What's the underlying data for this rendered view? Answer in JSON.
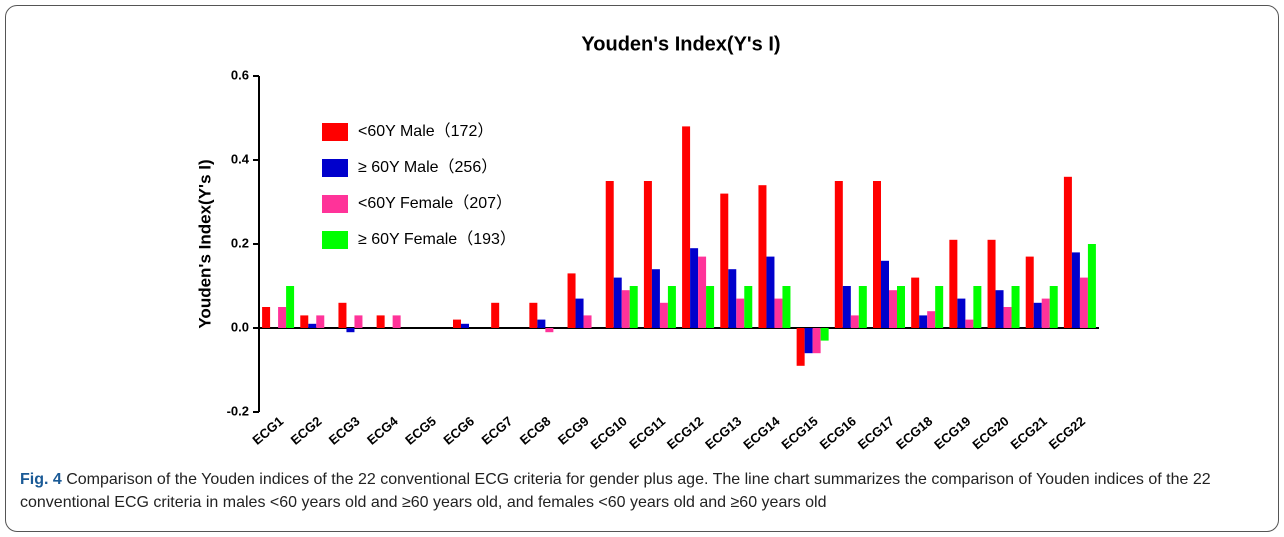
{
  "chart_data": {
    "type": "bar",
    "title": "Youden's Index(Y's I)",
    "y_label": "Youden's Index(Y's I)",
    "categories": [
      "ECG1",
      "ECG2",
      "ECG3",
      "ECG4",
      "ECG5",
      "ECG6",
      "ECG7",
      "ECG8",
      "ECG9",
      "ECG10",
      "ECG11",
      "ECG12",
      "ECG13",
      "ECG14",
      "ECG15",
      "ECG16",
      "ECG17",
      "ECG18",
      "ECG19",
      "ECG20",
      "ECG21",
      "ECG22"
    ],
    "series": [
      {
        "name": "<60Y Male（172）",
        "color": "#ff0000",
        "values": [
          0.05,
          0.03,
          0.06,
          0.03,
          0,
          0.02,
          0.06,
          0.06,
          0.13,
          0.35,
          0.35,
          0.48,
          0.32,
          0.34,
          -0.09,
          0.35,
          0.35,
          0.12,
          0.21,
          0.21,
          0.17,
          0.36
        ]
      },
      {
        "name": "≥ 60Y Male（256）",
        "color": "#0000cc",
        "values": [
          0,
          0.01,
          -0.01,
          0,
          0,
          0.01,
          0,
          0.02,
          0.07,
          0.12,
          0.14,
          0.19,
          0.14,
          0.17,
          -0.06,
          0.1,
          0.16,
          0.03,
          0.07,
          0.09,
          0.06,
          0.18
        ]
      },
      {
        "name": "<60Y Female（207）",
        "color": "#ff3399",
        "values": [
          0.05,
          0.03,
          0.03,
          0.03,
          0,
          0,
          0,
          -0.01,
          0.03,
          0.09,
          0.06,
          0.17,
          0.07,
          0.07,
          -0.06,
          0.03,
          0.09,
          0.04,
          0.02,
          0.05,
          0.07,
          0.12
        ]
      },
      {
        "name": "≥ 60Y Female（193）",
        "color": "#00ff00",
        "values": [
          0.1,
          0,
          0,
          0,
          0,
          0,
          0,
          0,
          0,
          0.1,
          0.1,
          0.1,
          0.1,
          0.1,
          -0.03,
          0.1,
          0.1,
          0.1,
          0.1,
          0.1,
          0.1,
          0.2
        ]
      }
    ],
    "ylim": [
      -0.2,
      0.6
    ],
    "yticks": [
      -0.2,
      {
        "value": 0,
        "label": "0.0"
      },
      0.2,
      0.4,
      0.6
    ],
    "legend": "upper left"
  },
  "caption": {
    "label": "Fig. 4",
    "text": " Comparison of the Youden indices of the 22 conventional ECG criteria for gender plus age. The line chart summarizes the comparison of Youden indices of the 22 conventional ECG criteria in males <60 years old and ≥60 years old, and females <60 years old and ≥60 years old"
  }
}
